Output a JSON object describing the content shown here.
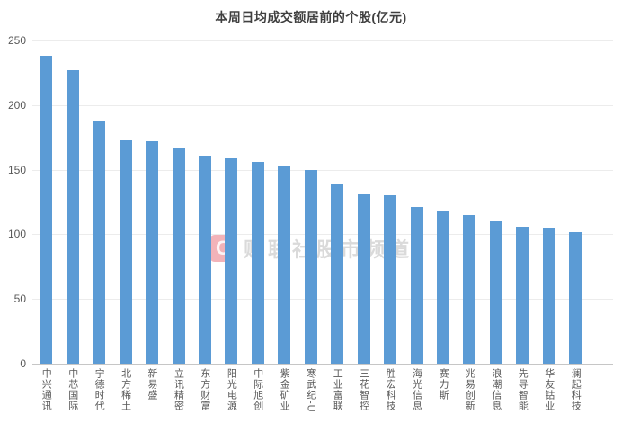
{
  "title": "本周日均成交额居前的个股(亿元)",
  "watermark": {
    "logo_letter": "C",
    "text": "财联社股市频道"
  },
  "colors": {
    "bar": "#5B9BD5",
    "title_text": "#404040",
    "axis_label": "#595959",
    "gridline": "#ececec",
    "axis_line": "#c6c6c6",
    "watermark_logo": "#e04a58"
  },
  "chart_data": {
    "type": "bar",
    "title": "本周日均成交额居前的个股(亿元)",
    "unit": "亿元",
    "categories": [
      "中兴通讯",
      "中芯国际",
      "宁德时代",
      "北方稀土",
      "新易盛",
      "立讯精密",
      "东方财富",
      "阳光电源",
      "中际旭创",
      "紫金矿业",
      "寒武纪-U",
      "工业富联",
      "三花智控",
      "胜宏科技",
      "海光信息",
      "赛力斯",
      "兆易创新",
      "浪潮信息",
      "先导智能",
      "华友钴业",
      "澜起科技"
    ],
    "values": [
      238,
      227,
      188,
      173,
      172,
      167,
      161,
      159,
      156,
      153,
      150,
      139,
      131,
      130,
      121,
      118,
      115,
      110,
      106,
      105,
      102
    ],
    "xlabel": "",
    "ylabel": "",
    "ylim": [
      0,
      250
    ],
    "yticks": [
      250,
      200,
      150,
      100,
      50,
      0
    ],
    "grid": true,
    "legend": false,
    "bar_color": "#5B9BD5"
  }
}
